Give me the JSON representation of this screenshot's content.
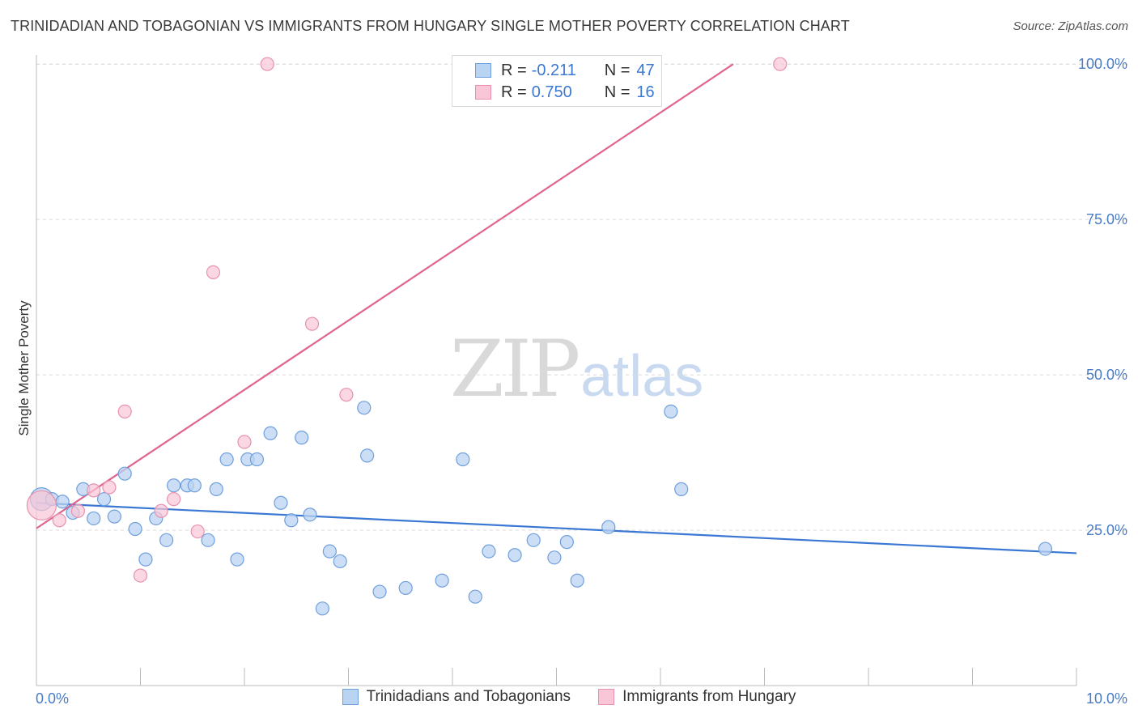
{
  "title": "TRINIDADIAN AND TOBAGONIAN VS IMMIGRANTS FROM HUNGARY SINGLE MOTHER POVERTY CORRELATION CHART",
  "source": "Source: ZipAtlas.com",
  "watermark": {
    "zip": "ZIP",
    "atlas": "atlas"
  },
  "colors": {
    "blue_fill": "#b9d3f3",
    "blue_stroke": "#6f9fdc",
    "blue_line": "#3a78d4",
    "pink_fill": "#f8c6d6",
    "pink_stroke": "#e892ad",
    "pink_line": "#e0648e",
    "grid": "#d9d9d9",
    "tick_label": "#4a7cc4"
  },
  "legend": {
    "rows": [
      {
        "r_label": "R =",
        "r_value": "-0.211",
        "n_label": "N =",
        "n_value": "47"
      },
      {
        "r_label": "R =",
        "r_value": "0.750",
        "n_label": "N =",
        "n_value": "16"
      }
    ]
  },
  "chart_data": {
    "type": "scatter",
    "xlabel": "",
    "ylabel": "Single Mother Poverty",
    "x_tick_labels": [
      "0.0%",
      "10.0%"
    ],
    "y_tick_labels": [
      "25.0%",
      "50.0%",
      "75.0%",
      "100.0%"
    ],
    "y_ticks": [
      25,
      50,
      75,
      100
    ],
    "xlim": [
      0,
      10
    ],
    "ylim": [
      0,
      102.5
    ],
    "grid": true,
    "legend_placement": "top-center",
    "series": [
      {
        "name": "Trinidadians and Tobagonians",
        "r": -0.211,
        "n": 47,
        "trend": [
          [
            0,
            29.4
          ],
          [
            10,
            21.3
          ]
        ],
        "points": [
          [
            0.05,
            30.0
          ],
          [
            0.15,
            30.0
          ],
          [
            0.25,
            29.6
          ],
          [
            0.35,
            27.8
          ],
          [
            0.45,
            31.6
          ],
          [
            0.55,
            26.9
          ],
          [
            0.65,
            30.0
          ],
          [
            0.75,
            27.2
          ],
          [
            0.85,
            34.1
          ],
          [
            0.95,
            25.2
          ],
          [
            1.05,
            20.3
          ],
          [
            1.15,
            26.9
          ],
          [
            1.25,
            23.4
          ],
          [
            1.32,
            32.2
          ],
          [
            1.45,
            32.2
          ],
          [
            1.52,
            32.2
          ],
          [
            1.65,
            23.4
          ],
          [
            1.73,
            31.6
          ],
          [
            1.83,
            36.4
          ],
          [
            1.93,
            20.3
          ],
          [
            2.03,
            36.4
          ],
          [
            2.12,
            36.4
          ],
          [
            2.25,
            40.6
          ],
          [
            2.35,
            29.4
          ],
          [
            2.45,
            26.6
          ],
          [
            2.55,
            39.9
          ],
          [
            2.63,
            27.5
          ],
          [
            2.75,
            12.4
          ],
          [
            2.82,
            21.6
          ],
          [
            2.92,
            20.0
          ],
          [
            3.15,
            44.7
          ],
          [
            3.18,
            37.0
          ],
          [
            3.3,
            15.1
          ],
          [
            3.55,
            15.7
          ],
          [
            3.9,
            16.9
          ],
          [
            4.1,
            36.4
          ],
          [
            4.22,
            14.3
          ],
          [
            4.35,
            21.6
          ],
          [
            4.6,
            21.0
          ],
          [
            4.78,
            23.4
          ],
          [
            4.98,
            20.6
          ],
          [
            5.1,
            23.1
          ],
          [
            5.2,
            16.9
          ],
          [
            5.5,
            25.5
          ],
          [
            6.1,
            44.1
          ],
          [
            6.2,
            31.6
          ],
          [
            9.7,
            22.0
          ]
        ]
      },
      {
        "name": "Immigrants from Hungary",
        "r": 0.75,
        "n": 16,
        "trend": [
          [
            0,
            25.3
          ],
          [
            6.7,
            100.0
          ]
        ],
        "points": [
          [
            0.05,
            29.0
          ],
          [
            0.22,
            26.6
          ],
          [
            0.4,
            28.1
          ],
          [
            0.55,
            31.4
          ],
          [
            0.7,
            31.9
          ],
          [
            0.85,
            44.1
          ],
          [
            1.0,
            17.7
          ],
          [
            1.2,
            28.1
          ],
          [
            1.32,
            30.0
          ],
          [
            1.55,
            24.8
          ],
          [
            1.7,
            66.5
          ],
          [
            2.0,
            39.2
          ],
          [
            2.22,
            100.0
          ],
          [
            2.65,
            58.2
          ],
          [
            2.98,
            46.8
          ],
          [
            7.15,
            100.0
          ]
        ]
      }
    ]
  }
}
